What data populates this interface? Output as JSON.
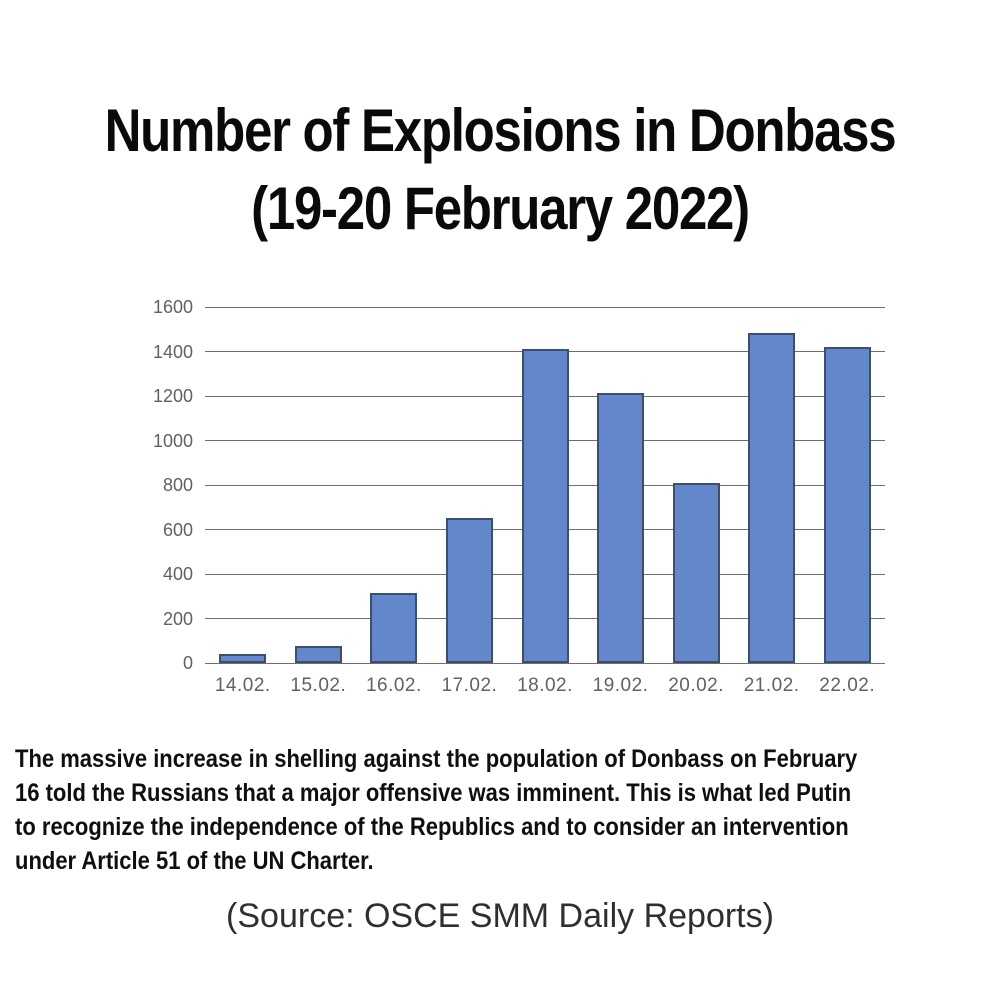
{
  "title": {
    "line1": "Number of Explosions in Donbass",
    "line2": "(19-20 February 2022)"
  },
  "chart_data": {
    "type": "bar",
    "title": "Number of Explosions in Donbass (19-20 February 2022)",
    "categories": [
      "14.02.",
      "15.02.",
      "16.02.",
      "17.02.",
      "18.02.",
      "19.02.",
      "20.02.",
      "21.02.",
      "22.02."
    ],
    "values": [
      41,
      76,
      316,
      654,
      1413,
      1215,
      810,
      1484,
      1420
    ],
    "xlabel": "",
    "ylabel": "",
    "ylim": [
      0,
      1600
    ],
    "yticks": [
      0,
      200,
      400,
      600,
      800,
      1000,
      1200,
      1400,
      1600
    ],
    "grid": true,
    "legend": false,
    "bar_color": "#6288cb",
    "bar_border_color": "#3e4e6b",
    "gridline_color": "#6e6e6e",
    "axis_label_color": "#616161"
  },
  "caption": {
    "lines": [
      "The massive increase in shelling against the population of Donbass on February",
      "16 told the Russians that a major offensive was imminent. This is what led Putin",
      "to recognize the independence of the Republics and to consider an intervention",
      "under Article 51 of the UN Charter."
    ]
  },
  "source": "(Source: OSCE SMM Daily Reports)"
}
